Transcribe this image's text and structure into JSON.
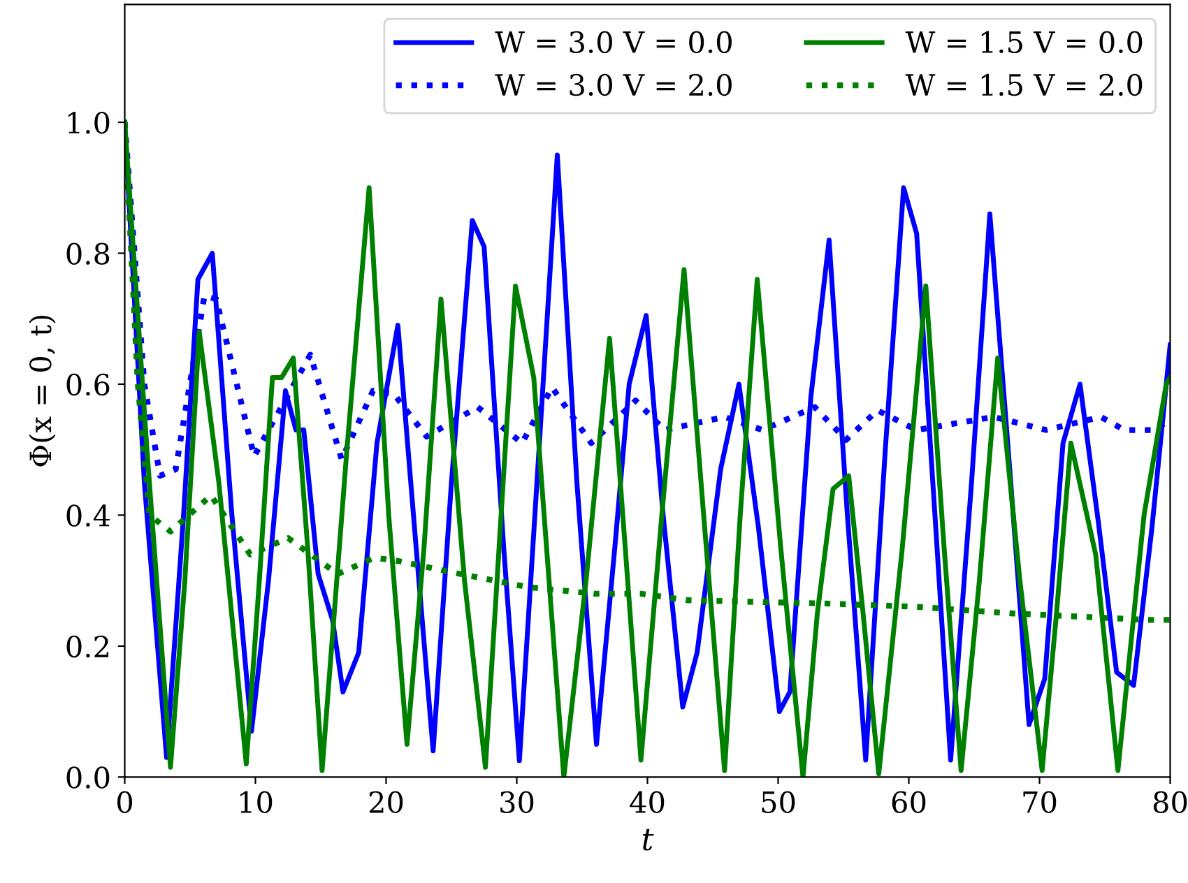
{
  "chart_data": {
    "type": "line",
    "xlabel": "t",
    "ylabel": "Φ(x = 0, t)",
    "xlim": [
      0,
      80
    ],
    "ylim": [
      0,
      1.18
    ],
    "xticks": [
      0,
      10,
      20,
      30,
      40,
      50,
      60,
      70,
      80
    ],
    "yticks": [
      {
        "value": 0,
        "label": "0.0"
      },
      {
        "value": 0.2,
        "label": "0.2"
      },
      {
        "value": 0.4,
        "label": "0.4"
      },
      {
        "value": 0.6,
        "label": "0.6"
      },
      {
        "value": 0.8,
        "label": "0.8"
      },
      {
        "value": 1.0,
        "label": "1.0"
      }
    ],
    "grid": false,
    "legend": "top right",
    "marker": "none",
    "series": [
      {
        "name": "W = 3.0 V = 0.0",
        "color": "#0000ff",
        "line_style": "solid",
        "x": [
          0,
          1.5,
          3.2,
          4.5,
          5.6,
          6.7,
          8.2,
          9.7,
          11,
          12.3,
          13.1,
          13.7,
          14.8,
          15.9,
          16.7,
          17.9,
          19.3,
          20.9,
          22.3,
          23.6,
          25,
          26.6,
          27.5,
          29,
          30.2,
          31.7,
          33.1,
          34.6,
          36.1,
          37.5,
          38.6,
          39.9,
          41.2,
          42.7,
          43.8,
          45.6,
          47.0,
          48.5,
          50.1,
          50.9,
          52.5,
          53.9,
          55.3,
          56.7,
          58.2,
          59.6,
          60.6,
          62,
          63.2,
          64.8,
          66.2,
          67.8,
          69.2,
          70.4,
          71.8,
          73.1,
          74.5,
          75.9,
          77.2,
          78.6,
          80
        ],
        "values": [
          1.0,
          0.45,
          0.03,
          0.4,
          0.76,
          0.8,
          0.4,
          0.07,
          0.3,
          0.59,
          0.53,
          0.53,
          0.31,
          0.24,
          0.13,
          0.19,
          0.51,
          0.69,
          0.35,
          0.04,
          0.45,
          0.85,
          0.81,
          0.35,
          0.025,
          0.5,
          0.95,
          0.45,
          0.05,
          0.35,
          0.6,
          0.705,
          0.4,
          0.107,
          0.19,
          0.47,
          0.6,
          0.38,
          0.1,
          0.13,
          0.58,
          0.82,
          0.4,
          0.026,
          0.5,
          0.9,
          0.83,
          0.4,
          0.026,
          0.45,
          0.86,
          0.45,
          0.08,
          0.15,
          0.51,
          0.6,
          0.39,
          0.16,
          0.14,
          0.38,
          0.66
        ]
      },
      {
        "name": "W = 3.0 V = 2.0",
        "color": "#0000ff",
        "line_style": "dotted",
        "x": [
          0,
          1.5,
          2.7,
          3.9,
          6.1,
          7.0,
          9.9,
          14.2,
          16.6,
          19.0,
          20.6,
          23.1,
          27.0,
          30.4,
          32.7,
          35.7,
          39.1,
          41.3,
          45.9,
          48.8,
          52.8,
          55.2,
          57.6,
          60.6,
          66.5,
          70.5,
          74.7,
          76.5,
          79,
          80
        ],
        "values": [
          1.0,
          0.6,
          0.46,
          0.47,
          0.735,
          0.73,
          0.49,
          0.645,
          0.485,
          0.59,
          0.585,
          0.52,
          0.565,
          0.51,
          0.595,
          0.51,
          0.575,
          0.53,
          0.55,
          0.53,
          0.565,
          0.515,
          0.56,
          0.53,
          0.55,
          0.53,
          0.55,
          0.53,
          0.53,
          0.55
        ]
      },
      {
        "name": "W = 1.5 V = 0.0",
        "color": "#008000",
        "line_style": "solid",
        "x": [
          0,
          1.7,
          3.5,
          4.6,
          5.7,
          7.2,
          9.3,
          10.3,
          11.3,
          12.0,
          12.9,
          14.0,
          15.1,
          17,
          18.7,
          20.2,
          21.6,
          22.9,
          24.2,
          26,
          27.6,
          28.8,
          29.9,
          31.3,
          33.6,
          35.3,
          37.1,
          38.3,
          39.5,
          41.1,
          42.8,
          44.3,
          45.9,
          47.1,
          48.4,
          50.2,
          51.9,
          53,
          54.2,
          55.4,
          56.5,
          57.7,
          59.5,
          61.3,
          62.7,
          64.0,
          65.4,
          66.8,
          68.5,
          70.2,
          71.3,
          72.4,
          74.3,
          76.0,
          78.0,
          79.7,
          80
        ],
        "values": [
          1.0,
          0.5,
          0.015,
          0.3,
          0.68,
          0.45,
          0.02,
          0.3,
          0.61,
          0.61,
          0.64,
          0.35,
          0.01,
          0.5,
          0.9,
          0.4,
          0.05,
          0.35,
          0.73,
          0.3,
          0.015,
          0.4,
          0.75,
          0.61,
          0.0,
          0.3,
          0.67,
          0.35,
          0.026,
          0.4,
          0.775,
          0.4,
          0.01,
          0.4,
          0.76,
          0.35,
          0.0,
          0.25,
          0.44,
          0.46,
          0.25,
          0.005,
          0.35,
          0.75,
          0.35,
          0.01,
          0.3,
          0.64,
          0.3,
          0.01,
          0.25,
          0.51,
          0.34,
          0.01,
          0.4,
          0.6,
          0.61
        ]
      },
      {
        "name": "W = 1.5 V = 2.0",
        "color": "#008000",
        "line_style": "dotted",
        "x": [
          0,
          1.0,
          1.9,
          3.5,
          6.6,
          9.6,
          12.5,
          16.3,
          19.1,
          20.9,
          25.7,
          30.9,
          35.9,
          39.5,
          43.1,
          53.6,
          60.6,
          67.8,
          78.3,
          80
        ],
        "values": [
          1.0,
          0.6,
          0.4,
          0.375,
          0.43,
          0.34,
          0.365,
          0.31,
          0.335,
          0.33,
          0.31,
          0.29,
          0.28,
          0.28,
          0.27,
          0.265,
          0.26,
          0.25,
          0.24,
          0.24
        ]
      }
    ]
  }
}
